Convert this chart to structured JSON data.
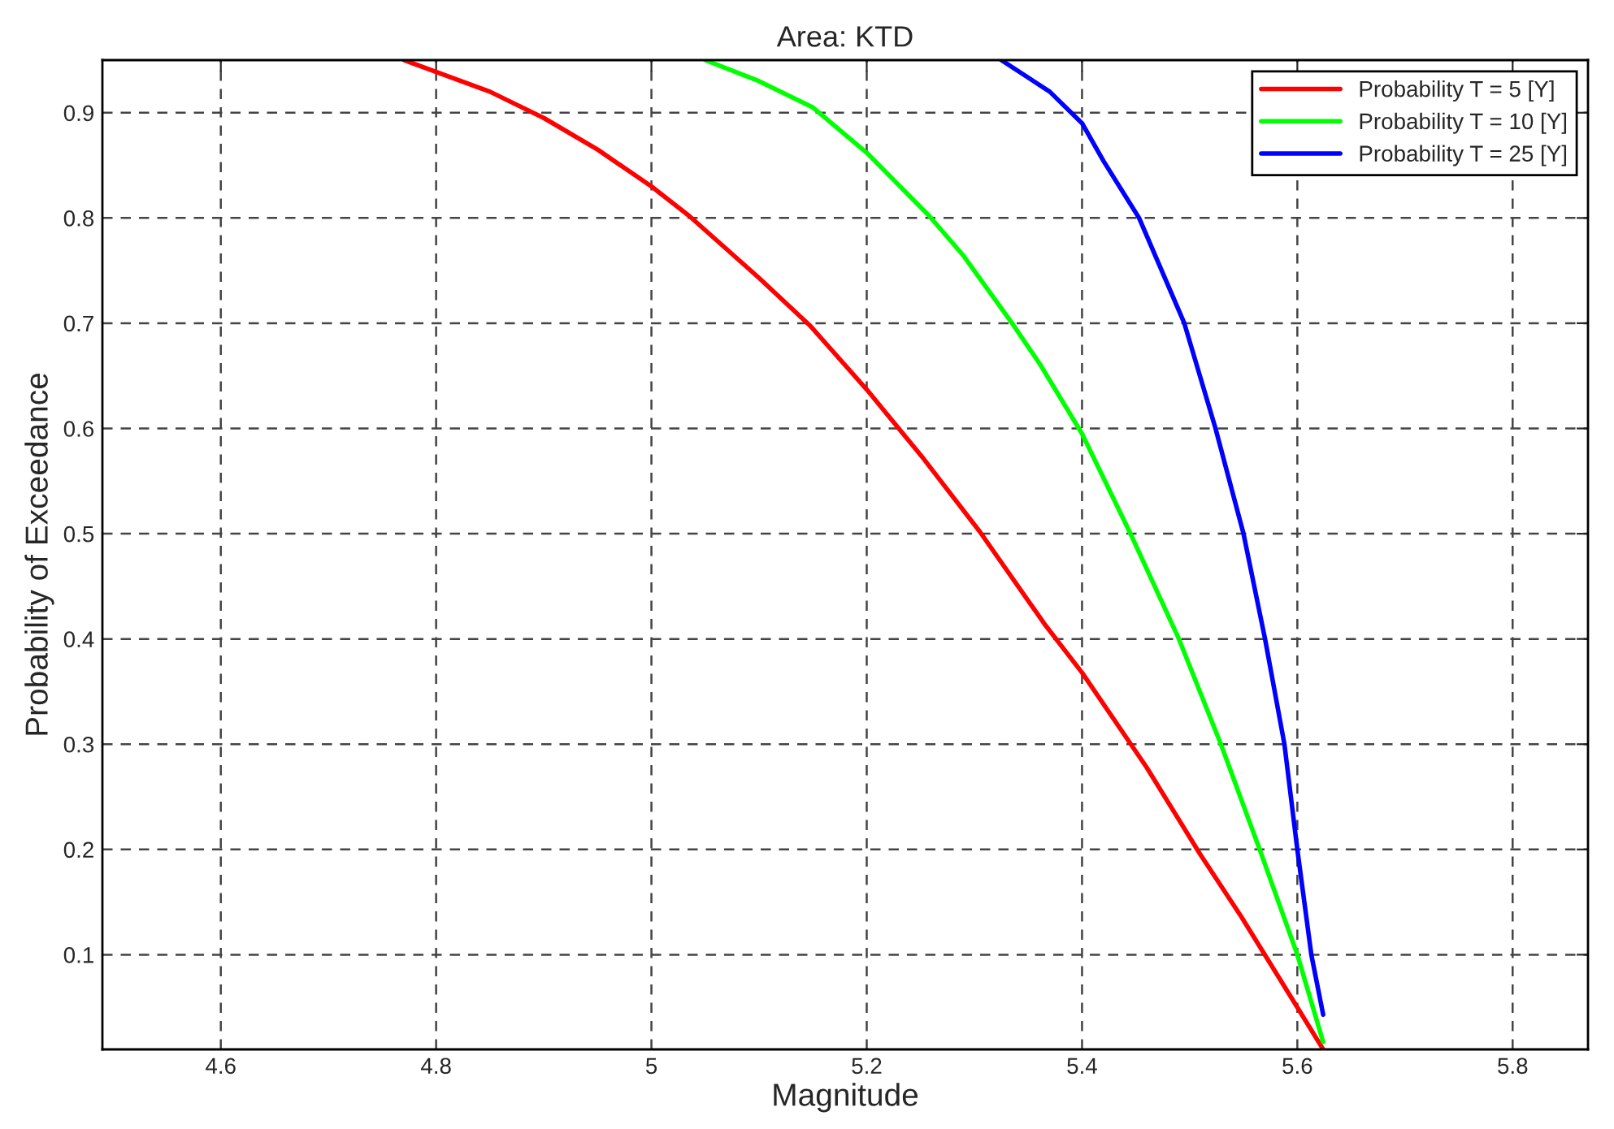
{
  "chart_data": {
    "type": "line",
    "title": "Area: KTD",
    "xlabel": "Magnitude",
    "ylabel": "Probability of Exceedance",
    "xlim": [
      4.49,
      5.87
    ],
    "ylim": [
      0.01,
      0.95
    ],
    "xticks": [
      4.6,
      4.8,
      5,
      5.2,
      5.4,
      5.6,
      5.8
    ],
    "yticks": [
      0.1,
      0.2,
      0.3,
      0.4,
      0.5,
      0.6,
      0.7,
      0.8,
      0.9
    ],
    "grid": true,
    "legend": "top right",
    "line_style": "solid",
    "marker": "none",
    "series": [
      {
        "name": "Probability T = 5 [Y]",
        "color": "#ff0000",
        "x": [
          4.77,
          4.85,
          4.9,
          4.95,
          5.0,
          5.035,
          5.1,
          5.148,
          5.2,
          5.253,
          5.305,
          5.366,
          5.4,
          5.46,
          5.51,
          5.548,
          5.6,
          5.624
        ],
        "values": [
          0.95,
          0.92,
          0.895,
          0.865,
          0.83,
          0.802,
          0.743,
          0.697,
          0.637,
          0.571,
          0.502,
          0.413,
          0.368,
          0.278,
          0.195,
          0.136,
          0.05,
          0.01
        ]
      },
      {
        "name": "Probability T = 10 [Y]",
        "color": "#00ff00",
        "x": [
          5.05,
          5.1,
          5.15,
          5.2,
          5.258,
          5.29,
          5.335,
          5.361,
          5.4,
          5.445,
          5.49,
          5.529,
          5.565,
          5.6,
          5.624
        ],
        "values": [
          0.95,
          0.93,
          0.905,
          0.862,
          0.802,
          0.764,
          0.7,
          0.661,
          0.595,
          0.5,
          0.4,
          0.3,
          0.2,
          0.1,
          0.017
        ]
      },
      {
        "name": "Probability T = 25 [Y]",
        "color": "#0000ff",
        "x": [
          5.325,
          5.37,
          5.4,
          5.42,
          5.453,
          5.495,
          5.524,
          5.55,
          5.57,
          5.588,
          5.6,
          5.613,
          5.624
        ],
        "values": [
          0.95,
          0.92,
          0.89,
          0.854,
          0.8,
          0.7,
          0.6,
          0.5,
          0.4,
          0.3,
          0.2,
          0.1,
          0.043
        ]
      }
    ]
  }
}
